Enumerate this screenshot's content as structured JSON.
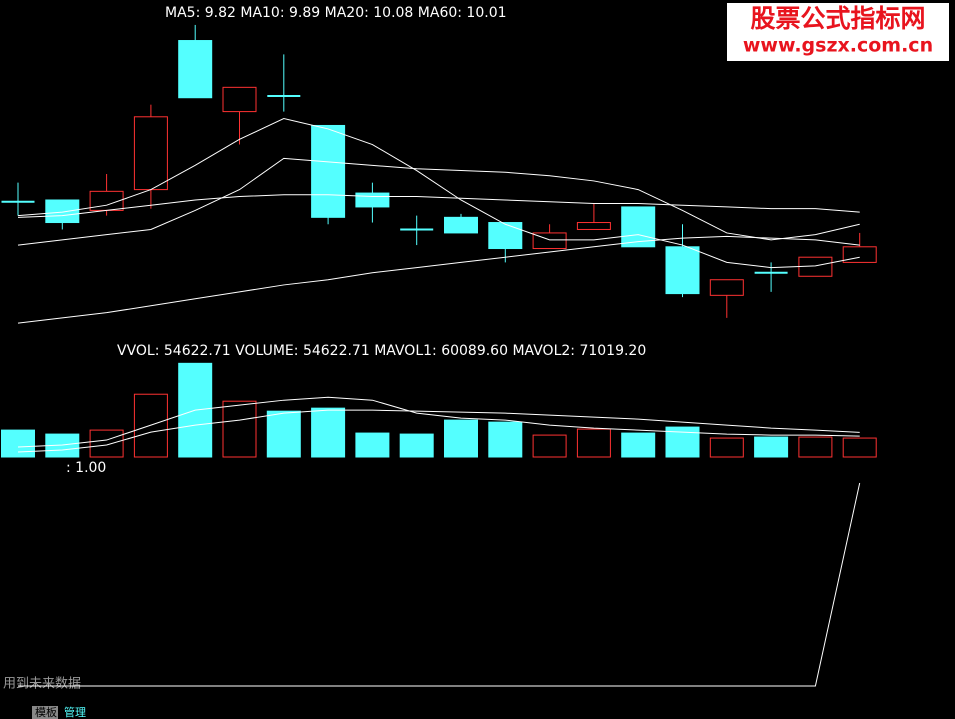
{
  "watermark": {
    "title": "股票公式指标网",
    "url": "www.gszx.com.cn"
  },
  "chart_data": [
    {
      "type": "candlestick",
      "open": [
        10.14,
        10.15,
        10.09,
        10.21,
        11.07,
        10.66,
        10.75,
        10.58,
        10.19,
        9.98,
        10.05,
        10.02,
        9.87,
        9.98,
        10.11,
        9.88,
        9.6,
        9.73,
        9.71,
        9.79
      ],
      "high": [
        10.25,
        10.15,
        10.3,
        10.7,
        11.16,
        10.8,
        10.99,
        10.58,
        10.25,
        10.06,
        10.07,
        10.02,
        10.01,
        10.13,
        10.11,
        10.01,
        9.69,
        9.79,
        9.82,
        9.96
      ],
      "low": [
        10.06,
        9.98,
        10.06,
        10.1,
        10.74,
        10.47,
        10.66,
        10.01,
        10.02,
        9.89,
        9.96,
        9.79,
        9.87,
        9.98,
        9.88,
        9.59,
        9.47,
        9.62,
        9.71,
        9.79
      ],
      "close": [
        10.14,
        10.02,
        10.2,
        10.63,
        10.74,
        10.8,
        10.75,
        10.05,
        10.11,
        9.98,
        9.96,
        9.87,
        9.96,
        10.02,
        9.88,
        9.61,
        9.69,
        9.73,
        9.82,
        9.88
      ],
      "up_color": "#ff3232",
      "down_color": "#54ffff",
      "ylim": [
        9.4,
        11.2
      ],
      "lines": [
        {
          "label": "MA5: 9.82",
          "color": "#ffffff",
          "values": [
            10.06,
            10.08,
            10.12,
            10.21,
            10.35,
            10.5,
            10.62,
            10.56,
            10.47,
            10.32,
            10.15,
            10.01,
            9.92,
            9.92,
            9.95,
            9.89,
            9.79,
            9.76,
            9.77,
            9.82
          ]
        },
        {
          "label": "MA10: 9.89",
          "color": "#ffffff",
          "values": [
            9.44,
            9.47,
            9.5,
            9.54,
            9.58,
            9.62,
            9.66,
            9.69,
            9.73,
            9.76,
            9.79,
            9.82,
            9.85,
            9.88,
            9.91,
            9.93,
            9.94,
            9.93,
            9.92,
            9.89
          ]
        },
        {
          "label": "MA20: 10.08",
          "color": "#ffffff",
          "values": [
            10.05,
            10.06,
            10.09,
            10.12,
            10.15,
            10.17,
            10.18,
            10.18,
            10.17,
            10.17,
            10.16,
            10.15,
            10.14,
            10.13,
            10.13,
            10.12,
            10.11,
            10.1,
            10.1,
            10.08
          ]
        },
        {
          "label": "MA60: 10.01",
          "color": "#ffffff",
          "values": [
            9.89,
            9.92,
            9.95,
            9.98,
            10.09,
            10.21,
            10.39,
            10.37,
            10.35,
            10.33,
            10.32,
            10.31,
            10.29,
            10.26,
            10.21,
            10.09,
            9.96,
            9.92,
            9.95,
            10.01
          ]
        }
      ]
    },
    {
      "type": "bar",
      "title": "VVOL: 54622.71",
      "series": [
        {
          "label": "VOLUME: 54622.71",
          "values": [
            77600,
            66100,
            77600,
            181100,
            270200,
            161000,
            132200,
            140900,
            69000,
            66100,
            106400,
            100600,
            63200,
            80500,
            69000,
            86300,
            54600,
            57500,
            57500,
            54622.71
          ]
        }
      ],
      "ylim": [
        0,
        300000
      ],
      "lines": [
        {
          "label": "MAVOL1: 60089.60",
          "color": "#ffffff",
          "values": [
            28750,
            34500,
            48875,
            92000,
            135125,
            149500,
            163875,
            172500,
            163875,
            126500,
            112125,
            106375,
            92000,
            83375,
            77625,
            71875,
            66125,
            63250,
            63250,
            60089.6
          ]
        },
        {
          "label": "MAVOL2: 71019.20",
          "color": "#ffffff",
          "values": [
            14375,
            20125,
            34500,
            71875,
            92000,
            106375,
            126500,
            135125,
            135125,
            132250,
            129375,
            126500,
            120750,
            115000,
            109250,
            100625,
            92000,
            83375,
            77625,
            71019.2
          ]
        }
      ]
    },
    {
      "type": "line",
      "ylim": [
        0,
        1
      ],
      "series": [
        {
          "label": ": 1.00",
          "color": "#ffffff",
          "values": [
            0,
            0,
            0,
            0,
            0,
            0,
            0,
            0,
            0,
            0,
            0,
            0,
            0,
            0,
            0,
            0,
            0,
            0,
            0,
            1
          ]
        }
      ]
    }
  ],
  "status": {
    "warning": "用到未来数据",
    "tabs": [
      "模板",
      "管理"
    ]
  }
}
